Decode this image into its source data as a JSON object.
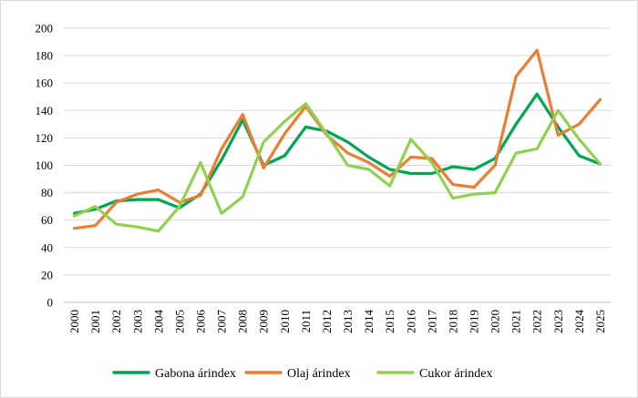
{
  "chart_data": {
    "type": "line",
    "title": "",
    "xlabel": "",
    "ylabel": "",
    "ylim": [
      0,
      200
    ],
    "yticks": [
      0,
      20,
      40,
      60,
      80,
      100,
      120,
      140,
      160,
      180,
      200
    ],
    "categories": [
      "2000",
      "2001",
      "2002",
      "2003",
      "2004",
      "2005",
      "2006",
      "2007",
      "2008",
      "2009",
      "2010",
      "2011",
      "2012",
      "2013",
      "2014",
      "2015",
      "2016",
      "2017",
      "2018",
      "2019",
      "2020",
      "2021",
      "2022",
      "2023",
      "2024",
      "2025"
    ],
    "grid": true,
    "legend_position": "bottom",
    "series": [
      {
        "name": "Gabona árindex",
        "color": "#00a651",
        "values": [
          65,
          68,
          74,
          75,
          75,
          69,
          79,
          104,
          133,
          100,
          107,
          128,
          125,
          117,
          106,
          97,
          94,
          94,
          99,
          97,
          105,
          130,
          152,
          128,
          107,
          101
        ]
      },
      {
        "name": "Olaj árindex",
        "color": "#ed7d31",
        "values": [
          54,
          56,
          73,
          79,
          82,
          73,
          78,
          112,
          137,
          98,
          123,
          143,
          122,
          109,
          102,
          92,
          106,
          105,
          86,
          84,
          100,
          165,
          184,
          122,
          130,
          148
        ]
      },
      {
        "name": "Cukor árindex",
        "color": "#92d050",
        "values": [
          63,
          70,
          57,
          55,
          52,
          70,
          102,
          65,
          77,
          117,
          132,
          145,
          123,
          100,
          97,
          85,
          119,
          102,
          76,
          79,
          80,
          109,
          112,
          140,
          119,
          101
        ]
      }
    ]
  }
}
